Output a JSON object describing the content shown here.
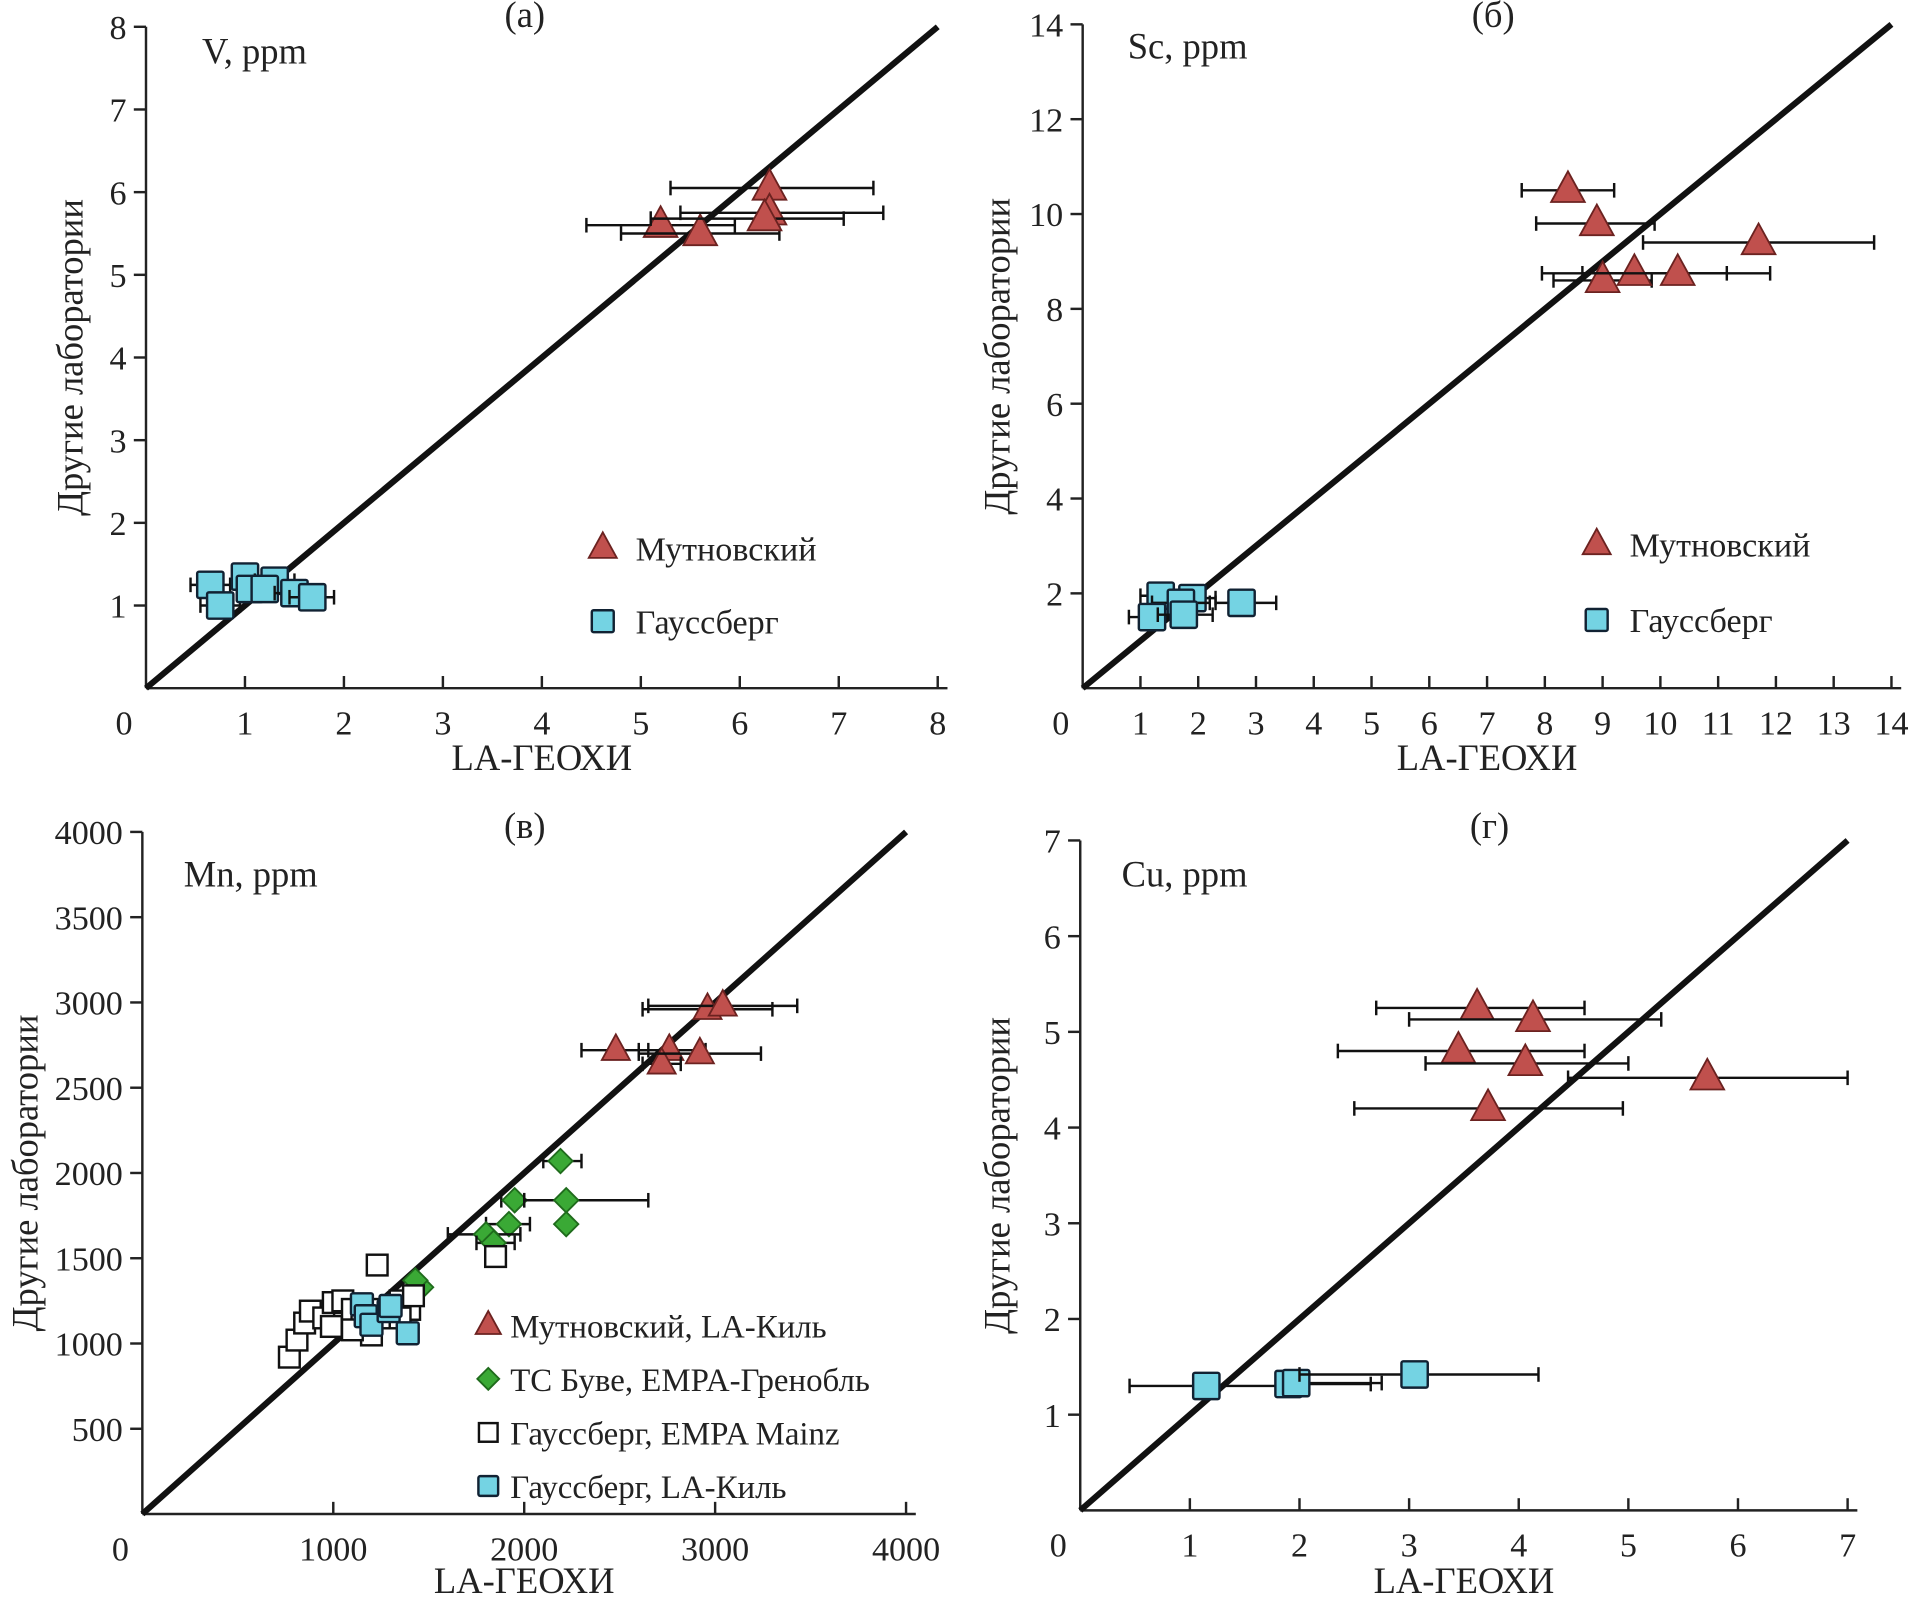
{
  "colors": {
    "triangle": "#c0504d",
    "square_cyan": "#74d3e3",
    "diamond": "#3aa935",
    "line": "#111111"
  },
  "chart_data": [
    {
      "type": "scatter",
      "panel_label": "(a)",
      "element_label": "V, ppm",
      "xlabel": "LA-ГЕОХИ",
      "ylabel": "Другие лаборатории",
      "xlim": [
        0,
        8
      ],
      "ylim": [
        0,
        8
      ],
      "xticks": [
        "0",
        "1",
        "2",
        "3",
        "4",
        "5",
        "6",
        "7",
        "8"
      ],
      "yticks": [
        "1",
        "2",
        "3",
        "4",
        "5",
        "6",
        "7",
        "8"
      ],
      "reference_line": "1:1",
      "legend_position": "lower-right",
      "series": [
        {
          "name": "Мутновский",
          "marker": "triangle",
          "points": [
            {
              "x": 5.2,
              "y": 5.6,
              "xerr": [
                4.45,
                5.95
              ]
            },
            {
              "x": 5.6,
              "y": 5.5,
              "xerr": [
                4.8,
                6.4
              ]
            },
            {
              "x": 6.3,
              "y": 6.05,
              "xerr": [
                5.3,
                7.35
              ]
            },
            {
              "x": 6.3,
              "y": 5.75,
              "xerr": [
                5.4,
                7.45
              ]
            },
            {
              "x": 6.25,
              "y": 5.68,
              "xerr": [
                5.1,
                7.05
              ]
            }
          ]
        },
        {
          "name": "Гауссберг",
          "marker": "square",
          "points": [
            {
              "x": 0.65,
              "y": 1.25,
              "xerr": [
                0.45,
                0.85
              ]
            },
            {
              "x": 0.75,
              "y": 1.0,
              "xerr": [
                0.55,
                0.95
              ]
            },
            {
              "x": 1.0,
              "y": 1.35
            },
            {
              "x": 1.05,
              "y": 1.2
            },
            {
              "x": 1.3,
              "y": 1.3,
              "xerr": [
                1.1,
                1.5
              ]
            },
            {
              "x": 1.2,
              "y": 1.2
            },
            {
              "x": 1.5,
              "y": 1.15,
              "xerr": [
                1.3,
                1.65
              ]
            },
            {
              "x": 1.68,
              "y": 1.1,
              "xerr": [
                1.45,
                1.9
              ]
            }
          ]
        }
      ]
    },
    {
      "type": "scatter",
      "panel_label": "(б)",
      "element_label": "Sc, ppm",
      "xlabel": "LA-ГЕОХИ",
      "ylabel": "Другие лаборатории",
      "xlim": [
        0,
        14
      ],
      "ylim": [
        0,
        14
      ],
      "xticks": [
        "0",
        "1",
        "2",
        "3",
        "4",
        "5",
        "6",
        "7",
        "8",
        "9",
        "10",
        "11",
        "12",
        "13",
        "14"
      ],
      "yticks": [
        "2",
        "4",
        "6",
        "8",
        "10",
        "12",
        "14"
      ],
      "reference_line": "1:1",
      "legend_position": "lower-right",
      "series": [
        {
          "name": "Мутновский",
          "marker": "triangle",
          "points": [
            {
              "x": 8.4,
              "y": 10.5,
              "xerr": [
                7.6,
                9.2
              ]
            },
            {
              "x": 8.9,
              "y": 9.8,
              "xerr": [
                7.85,
                9.9
              ]
            },
            {
              "x": 11.7,
              "y": 9.4,
              "xerr": [
                9.7,
                13.7
              ]
            },
            {
              "x": 9.0,
              "y": 8.6,
              "xerr": [
                8.15,
                9.85
              ]
            },
            {
              "x": 9.55,
              "y": 8.75,
              "xerr": [
                8.65,
                11.15
              ]
            },
            {
              "x": 10.3,
              "y": 8.75,
              "xerr": [
                7.95,
                11.9
              ]
            }
          ]
        },
        {
          "name": "Гауссберг",
          "marker": "square",
          "points": [
            {
              "x": 1.35,
              "y": 1.95,
              "xerr": [
                1.0,
                2.1
              ]
            },
            {
              "x": 1.9,
              "y": 1.9,
              "xerr": [
                1.7,
                2.3
              ]
            },
            {
              "x": 1.7,
              "y": 1.8,
              "xerr": [
                1.2,
                2.2
              ]
            },
            {
              "x": 2.75,
              "y": 1.8,
              "xerr": [
                2.3,
                3.35
              ]
            },
            {
              "x": 1.2,
              "y": 1.5,
              "xerr": [
                0.8,
                1.7
              ]
            },
            {
              "x": 1.75,
              "y": 1.55,
              "xerr": [
                1.3,
                2.25
              ]
            }
          ]
        }
      ]
    },
    {
      "type": "scatter",
      "panel_label": "(в)",
      "element_label": "Mn, ppm",
      "xlabel": "LA-ГЕОХИ",
      "ylabel": "Другие лаборатории",
      "xlim": [
        0,
        4000
      ],
      "ylim": [
        0,
        4000
      ],
      "xticks": [
        "0",
        "1000",
        "2000",
        "3000",
        "4000"
      ],
      "yticks": [
        "500",
        "1000",
        "1500",
        "2000",
        "2500",
        "3000",
        "3500",
        "4000"
      ],
      "reference_line": "1:1",
      "legend_position": "lower-right",
      "series": [
        {
          "name": "Мутновский, LA-Киль",
          "marker": "triangle",
          "points": [
            {
              "x": 2480,
              "y": 2720,
              "xerr": [
                2300,
                2650
              ]
            },
            {
              "x": 2760,
              "y": 2720,
              "xerr": [
                2600,
                2950
              ]
            },
            {
              "x": 2720,
              "y": 2640,
              "xerr": [
                2620,
                2820
              ]
            },
            {
              "x": 2920,
              "y": 2700,
              "xerr": [
                2600,
                3240
              ]
            },
            {
              "x": 2960,
              "y": 2960,
              "xerr": [
                2620,
                3300
              ]
            },
            {
              "x": 3040,
              "y": 2980,
              "xerr": [
                2650,
                3430
              ]
            }
          ]
        },
        {
          "name": "ТС Буве, EMPA-Гренобль",
          "marker": "diamond",
          "points": [
            {
              "x": 2190,
              "y": 2070,
              "xerr": [
                2100,
                2300
              ]
            },
            {
              "x": 1950,
              "y": 1840,
              "xerr": [
                1880,
                2000
              ]
            },
            {
              "x": 2220,
              "y": 1840,
              "xerr": [
                2000,
                2650
              ]
            },
            {
              "x": 1920,
              "y": 1700,
              "xerr": [
                1800,
                2030
              ]
            },
            {
              "x": 2220,
              "y": 1700
            },
            {
              "x": 1800,
              "y": 1640,
              "xerr": [
                1600,
                1980
              ]
            },
            {
              "x": 1840,
              "y": 1590,
              "xerr": [
                1750,
                1950
              ]
            },
            {
              "x": 1460,
              "y": 1330
            },
            {
              "x": 1430,
              "y": 1370
            }
          ]
        },
        {
          "name": "Гауссберг, EMPA Mainz",
          "marker": "open-square",
          "points": [
            {
              "x": 770,
              "y": 920
            },
            {
              "x": 810,
              "y": 1020
            },
            {
              "x": 850,
              "y": 1120
            },
            {
              "x": 880,
              "y": 1190
            },
            {
              "x": 950,
              "y": 1150
            },
            {
              "x": 1000,
              "y": 1240
            },
            {
              "x": 990,
              "y": 1100
            },
            {
              "x": 1050,
              "y": 1250
            },
            {
              "x": 1100,
              "y": 1200
            },
            {
              "x": 1150,
              "y": 1130
            },
            {
              "x": 1200,
              "y": 1050
            },
            {
              "x": 1230,
              "y": 1460
            },
            {
              "x": 1250,
              "y": 1200
            },
            {
              "x": 1300,
              "y": 1150
            },
            {
              "x": 1350,
              "y": 1250
            },
            {
              "x": 1400,
              "y": 1200
            },
            {
              "x": 1420,
              "y": 1280
            },
            {
              "x": 1850,
              "y": 1510
            },
            {
              "x": 1100,
              "y": 1080
            },
            {
              "x": 1350,
              "y": 1150
            }
          ]
        },
        {
          "name": "Гауссберг, LA-Киль",
          "marker": "square",
          "points": [
            {
              "x": 1150,
              "y": 1230
            },
            {
              "x": 1170,
              "y": 1160
            },
            {
              "x": 1200,
              "y": 1110
            },
            {
              "x": 1290,
              "y": 1190
            },
            {
              "x": 1390,
              "y": 1060
            },
            {
              "x": 1300,
              "y": 1220
            }
          ]
        }
      ]
    },
    {
      "type": "scatter",
      "panel_label": "(г)",
      "element_label": "Cu, ppm",
      "xlabel": "LA-ГЕОХИ",
      "ylabel": "Другие лаборатории",
      "xlim": [
        0,
        7
      ],
      "ylim": [
        0,
        7
      ],
      "xticks": [
        "0",
        "1",
        "2",
        "3",
        "4",
        "5",
        "6",
        "7"
      ],
      "yticks": [
        "1",
        "2",
        "3",
        "4",
        "5",
        "6",
        "7"
      ],
      "reference_line": "1:1",
      "legend_position": "none",
      "series": [
        {
          "marker": "triangle",
          "points": [
            {
              "x": 3.62,
              "y": 5.25,
              "xerr": [
                2.7,
                4.6
              ]
            },
            {
              "x": 4.13,
              "y": 5.13,
              "xerr": [
                3.0,
                5.3
              ]
            },
            {
              "x": 3.45,
              "y": 4.8,
              "xerr": [
                2.35,
                4.6
              ]
            },
            {
              "x": 4.06,
              "y": 4.67,
              "xerr": [
                3.15,
                5.0
              ]
            },
            {
              "x": 5.72,
              "y": 4.52,
              "xerr": [
                4.45,
                7.0
              ]
            },
            {
              "x": 3.72,
              "y": 4.2,
              "xerr": [
                2.5,
                4.95
              ]
            }
          ]
        },
        {
          "marker": "square",
          "points": [
            {
              "x": 1.15,
              "y": 1.3,
              "xerr": [
                0.45,
                1.85
              ]
            },
            {
              "x": 1.9,
              "y": 1.32,
              "xerr": [
                1.85,
                2.65
              ]
            },
            {
              "x": 1.97,
              "y": 1.33,
              "xerr": [
                2.0,
                2.75
              ]
            },
            {
              "x": 3.05,
              "y": 1.42,
              "xerr": [
                2.0,
                4.18
              ]
            }
          ]
        }
      ]
    }
  ]
}
